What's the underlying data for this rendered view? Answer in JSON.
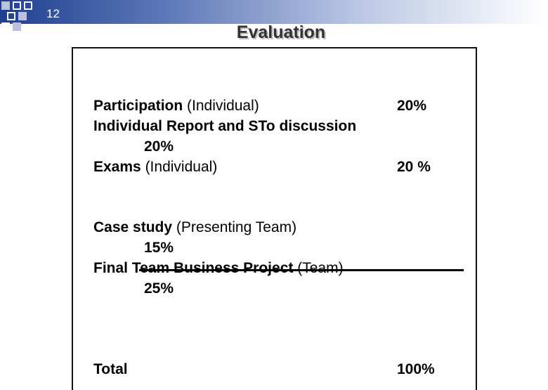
{
  "slide_number": "12",
  "title": "Evaluation",
  "items": [
    {
      "name": "Participation",
      "qualifier": "(Individual)",
      "value": "20%"
    },
    {
      "name": "Individual Report and STo discussion",
      "value": "20%"
    },
    {
      "name": "Exams",
      "qualifier": "(Individual)",
      "value": "20 %"
    },
    {
      "name": "Case study",
      "qualifier": "(Presenting Team)",
      "value": "15%"
    },
    {
      "name": "Final Team Business Project",
      "qualifier": "(Team)",
      "value": "25%"
    }
  ],
  "total": {
    "name": "Total",
    "value": "100%"
  }
}
